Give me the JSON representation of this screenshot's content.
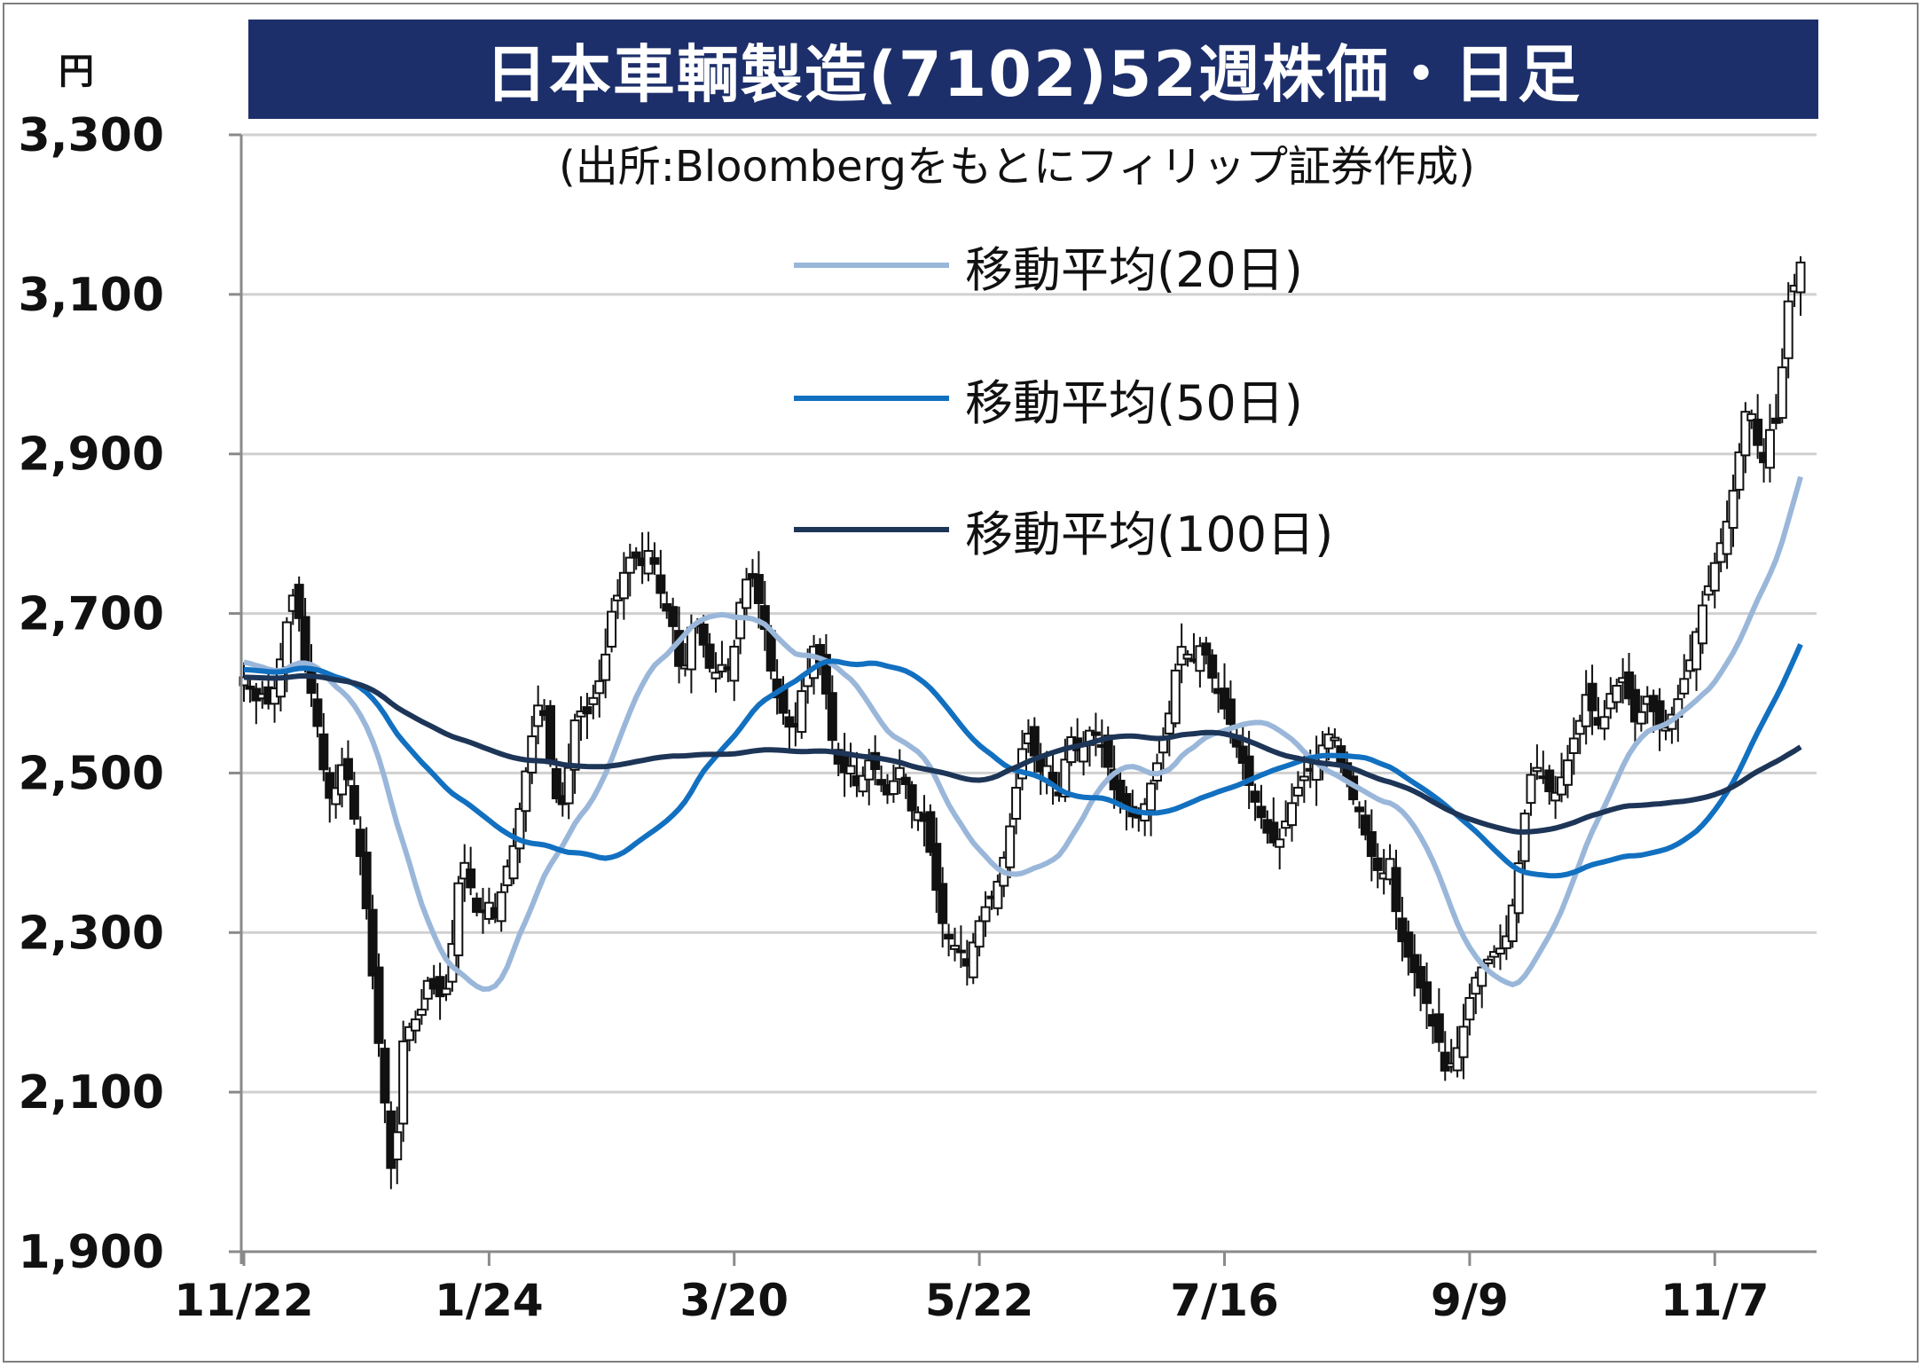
{
  "title": "日本車輌製造(7102)52週株価・日足",
  "source": "(出所:Bloombergをもとにフィリップ証券作成)",
  "unit": "円",
  "chart_data": {
    "type": "candlestick",
    "title": "日本車輌製造(7102)52週株価・日足",
    "ylabel": "円",
    "ylim": [
      1900,
      3300
    ],
    "yticks": [
      {
        "v": 1900,
        "label": "1,900"
      },
      {
        "v": 2100,
        "label": "2,100"
      },
      {
        "v": 2300,
        "label": "2,300"
      },
      {
        "v": 2500,
        "label": "2,500"
      },
      {
        "v": 2700,
        "label": "2,700"
      },
      {
        "v": 2900,
        "label": "2,900"
      },
      {
        "v": 3100,
        "label": "3,100"
      },
      {
        "v": 3300,
        "label": "3,300"
      }
    ],
    "xticks": [
      {
        "i": 0,
        "label": "11/22"
      },
      {
        "i": 40,
        "label": "1/24"
      },
      {
        "i": 80,
        "label": "3/20"
      },
      {
        "i": 120,
        "label": "5/22"
      },
      {
        "i": 160,
        "label": "7/16"
      },
      {
        "i": 200,
        "label": "9/9"
      },
      {
        "i": 240,
        "label": "11/7"
      }
    ],
    "n_days": 255,
    "grid": true,
    "legend_position": "top-right",
    "closes": [
      2620,
      2605,
      2590,
      2600,
      2585,
      2610,
      2650,
      2700,
      2730,
      2680,
      2620,
      2590,
      2540,
      2480,
      2460,
      2500,
      2520,
      2460,
      2420,
      2360,
      2280,
      2180,
      2120,
      2000,
      2020,
      2160,
      2180,
      2190,
      2200,
      2240,
      2230,
      2220,
      2230,
      2290,
      2370,
      2390,
      2350,
      2320,
      2330,
      2340,
      2310,
      2370,
      2390,
      2420,
      2480,
      2520,
      2570,
      2600,
      2540,
      2480,
      2450,
      2480,
      2560,
      2580,
      2570,
      2590,
      2610,
      2640,
      2700,
      2720,
      2750,
      2770,
      2770,
      2760,
      2780,
      2760,
      2720,
      2700,
      2680,
      2620,
      2640,
      2700,
      2680,
      2650,
      2620,
      2630,
      2640,
      2620,
      2700,
      2730,
      2760,
      2720,
      2700,
      2640,
      2600,
      2580,
      2560,
      2550,
      2600,
      2620,
      2660,
      2640,
      2600,
      2540,
      2510,
      2500,
      2510,
      2480,
      2500,
      2520,
      2500,
      2480,
      2470,
      2500,
      2510,
      2470,
      2440,
      2460,
      2420,
      2380,
      2320,
      2300,
      2280,
      2290,
      2250,
      2280,
      2310,
      2330,
      2340,
      2360,
      2390,
      2430,
      2480,
      2530,
      2550,
      2520,
      2500,
      2510,
      2480,
      2470,
      2530,
      2550,
      2520,
      2540,
      2560,
      2540,
      2530,
      2490,
      2470,
      2460,
      2450,
      2440,
      2450,
      2480,
      2500,
      2540,
      2560,
      2620,
      2660,
      2650,
      2640,
      2660,
      2650,
      2620,
      2600,
      2580,
      2560,
      2530,
      2510,
      2480,
      2460,
      2440,
      2420,
      2410,
      2420,
      2450,
      2470,
      2490,
      2500,
      2510,
      2530,
      2540,
      2560,
      2520,
      2500,
      2470,
      2460,
      2430,
      2400,
      2380,
      2370,
      2400,
      2330,
      2290,
      2270,
      2250,
      2230,
      2210,
      2180,
      2160,
      2120,
      2140,
      2160,
      2190,
      2230,
      2250,
      2260,
      2270,
      2280,
      2280,
      2310,
      2360,
      2420,
      2490,
      2510,
      2500,
      2480,
      2470,
      2490,
      2510,
      2540,
      2560,
      2600,
      2580,
      2560,
      2570,
      2600,
      2610,
      2620,
      2590,
      2560,
      2580,
      2600,
      2570,
      2550,
      2560,
      2580,
      2600,
      2630,
      2650,
      2700,
      2720,
      2750,
      2780,
      2800,
      2840,
      2880,
      2950,
      2960,
      2920,
      2880,
      2930,
      2930,
      3000,
      3090,
      3110,
      3140
    ]
  },
  "legend": [
    {
      "label": "移動平均(20日)",
      "color": "#9ab7da",
      "window": 20
    },
    {
      "label": "移動平均(50日)",
      "color": "#1270c0",
      "window": 50
    },
    {
      "label": "移動平均(100日)",
      "color": "#1d3557",
      "window": 100
    }
  ]
}
